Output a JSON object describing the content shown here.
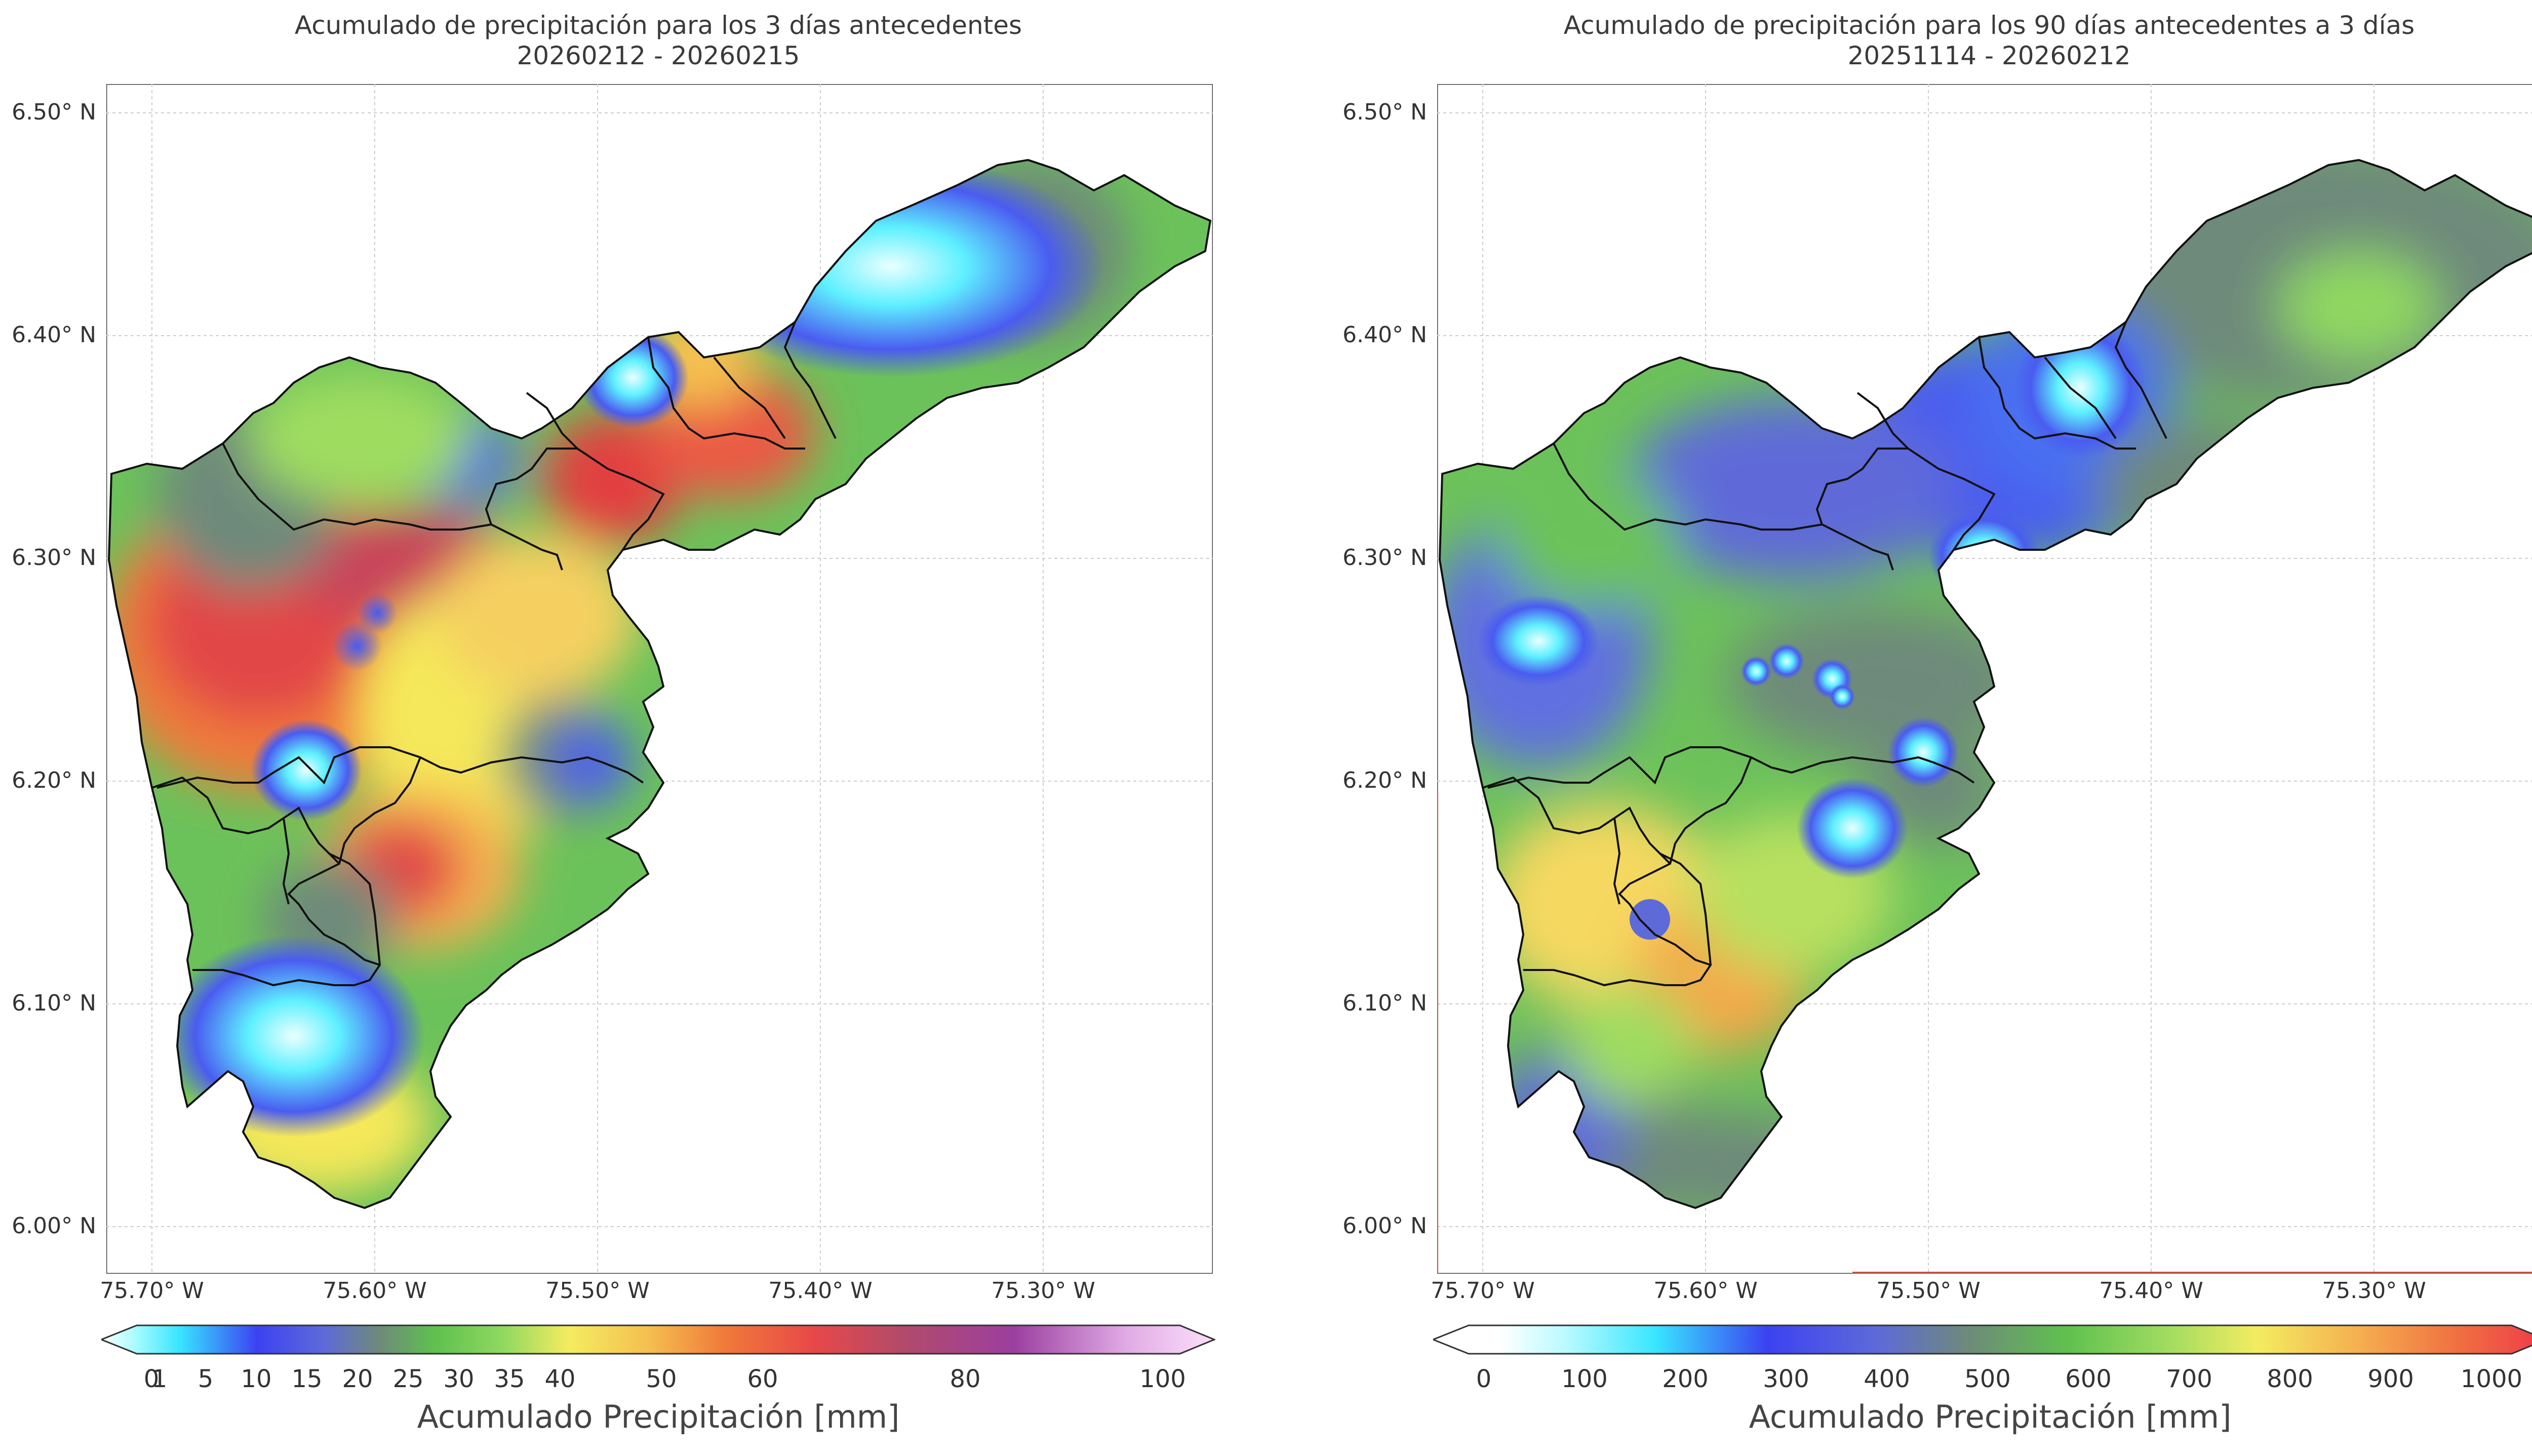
{
  "panels": [
    {
      "title": "Acumulado de precipitación para los 3 días antecedentes",
      "subtitle": "20260212 - 20260215",
      "colorbar": {
        "label": "Acumulado Precipitación [mm]",
        "ticks": [
          "0",
          "1",
          "5",
          "10",
          "15",
          "20",
          "25",
          "30",
          "35",
          "40",
          "50",
          "60",
          "80",
          "100"
        ]
      }
    },
    {
      "title": "Acumulado de precipitación para los 90 días antecedentes a 3 días",
      "subtitle": "20251114 - 20260212",
      "colorbar": {
        "label": "Acumulado Precipitación [mm]",
        "ticks": [
          "0",
          "100",
          "200",
          "300",
          "400",
          "500",
          "600",
          "700",
          "800",
          "900",
          "1000"
        ]
      }
    }
  ],
  "lat_ticks": [
    "6.50° N",
    "6.40° N",
    "6.30° N",
    "6.20° N",
    "6.10° N",
    "6.00° N"
  ],
  "lon_ticks": [
    "75.70° W",
    "75.60° W",
    "75.50° W",
    "75.40° W",
    "75.30° W"
  ],
  "colors": {
    "land_green": "#6cc25a",
    "blue": "#4a5cf0",
    "cyan": "#5ef0ff",
    "yellow": "#f5e85a",
    "red": "#ee4a4a",
    "purple": "#9b4fa0",
    "gray_green": "#6e8a7a"
  }
}
